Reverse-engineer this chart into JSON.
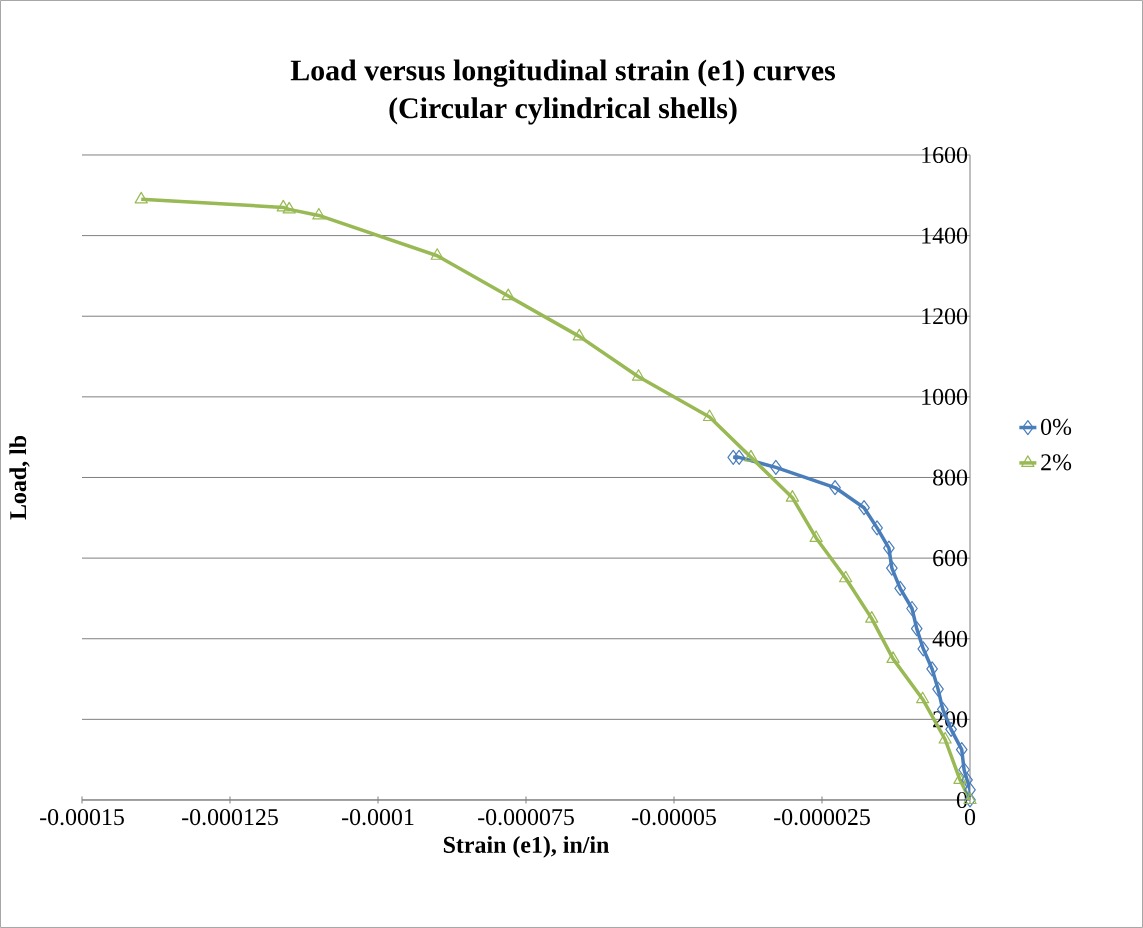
{
  "chart_data": {
    "type": "line",
    "title": "Load versus longitudinal strain (e1) curves\n(Circular cylindrical shells)",
    "xlabel": "Strain (e1), in/in",
    "ylabel": "Load,  lb",
    "xlim": [
      -0.00015,
      0
    ],
    "xticks": [
      {
        "value": -0.00015,
        "label": "-0.00015"
      },
      {
        "value": -0.000125,
        "label": "-0.000125"
      },
      {
        "value": -0.0001,
        "label": "-0.0001"
      },
      {
        "value": -7.5e-05,
        "label": "-0.000075"
      },
      {
        "value": -5e-05,
        "label": "-0.00005"
      },
      {
        "value": -2.5e-05,
        "label": "-0.000025"
      },
      {
        "value": 0,
        "label": "0"
      }
    ],
    "ylim": [
      0,
      1600
    ],
    "yticks": [
      0,
      200,
      400,
      600,
      800,
      1000,
      1200,
      1400,
      1600
    ],
    "grid": "y",
    "legend": "right",
    "series": [
      {
        "name": "0%",
        "color": "#4a7ebb",
        "marker": "diamond",
        "x": [
          0,
          0,
          -5e-07,
          -1e-06,
          -1.4e-06,
          -3.2e-06,
          -4.6e-06,
          -5.4e-06,
          -6.4e-06,
          -7.9e-06,
          -9e-06,
          -9.8e-06,
          -1.18e-05,
          -1.32e-05,
          -1.37e-05,
          -1.57e-05,
          -1.79e-05,
          -2.28e-05,
          -3.28e-05,
          -3.9e-05,
          -4e-05
        ],
        "values": [
          0,
          25,
          50,
          75,
          125,
          175,
          225,
          275,
          325,
          375,
          425,
          475,
          525,
          575,
          625,
          675,
          725,
          775,
          825,
          850,
          850
        ]
      },
      {
        "name": "2%",
        "color": "#98b954",
        "marker": "triangle",
        "x": [
          0,
          -1.7e-06,
          -4.2e-06,
          -8e-06,
          -1.3e-05,
          -1.66e-05,
          -2.1e-05,
          -2.6e-05,
          -3e-05,
          -3.7e-05,
          -4.4e-05,
          -5.6e-05,
          -6.6e-05,
          -7.8e-05,
          -9e-05,
          -0.00011,
          -0.000115,
          -0.000116,
          -0.00014
        ],
        "values": [
          0,
          50,
          150,
          250,
          350,
          450,
          550,
          650,
          750,
          850,
          950,
          1050,
          1150,
          1250,
          1350,
          1450,
          1465,
          1470,
          1490
        ]
      }
    ]
  }
}
